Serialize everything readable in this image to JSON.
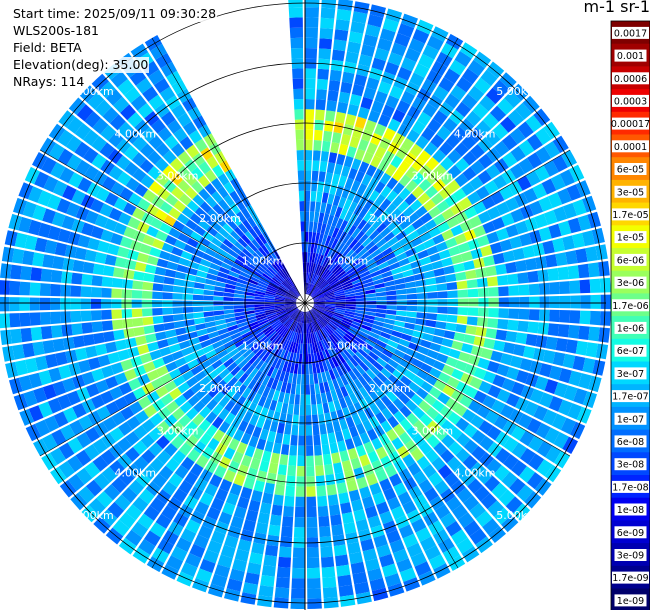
{
  "header": {
    "start_time": "Start time: 2025/09/11 09:30:28",
    "instrument": "WLS200s-181",
    "field": "Field: BETA",
    "elevation": "Elevation(deg): 35.00",
    "nrays": "NRays: 114"
  },
  "colorbar": {
    "title": "m-1 sr-1",
    "labels": [
      "0.0017",
      "0.001",
      "0.0006",
      "0.0003",
      "0.00017",
      "0.0001",
      "6e-05",
      "3e-05",
      "1.7e-05",
      "1e-05",
      "6e-06",
      "3e-06",
      "1.7e-06",
      "1e-06",
      "6e-07",
      "3e-07",
      "1.7e-07",
      "1e-07",
      "6e-08",
      "3e-08",
      "1.7e-08",
      "1e-08",
      "6e-09",
      "3e-09",
      "1.7e-09",
      "1e-09"
    ],
    "colors": [
      "#7f0000",
      "#a00000",
      "#c80000",
      "#ee0000",
      "#ff2a00",
      "#ff5800",
      "#ff8600",
      "#ffb300",
      "#ffd700",
      "#f3ff00",
      "#c6ff30",
      "#9aff5d",
      "#6dff8a",
      "#40ffb6",
      "#13fce3",
      "#00d8ff",
      "#00b4ff",
      "#0092ff",
      "#006dff",
      "#0048ff",
      "#0024ff",
      "#0000f1",
      "#0000d1",
      "#0000b1",
      "#00008f",
      "#00006b"
    ]
  },
  "chart_data": {
    "type": "heatmap",
    "projection": "polar (PPI scan)",
    "field": "BETA",
    "units": "m-1 sr-1",
    "scale": "log",
    "range_rings_km": [
      1,
      2,
      3,
      4,
      5
    ],
    "range_ring_labels": [
      "1.00km",
      "2.00km",
      "3.00km",
      "4.00km",
      "5.00km"
    ],
    "max_range_km": 5.1,
    "nrays": 114,
    "missing_sector_deg": [
      -28,
      -2
    ],
    "value_range": [
      1e-09,
      0.0017
    ],
    "typical_value_range": [
      1e-08,
      3e-07
    ],
    "enhanced_ring": {
      "range_km": [
        2.5,
        3.2
      ],
      "max_value": 1.7e-05
    }
  }
}
